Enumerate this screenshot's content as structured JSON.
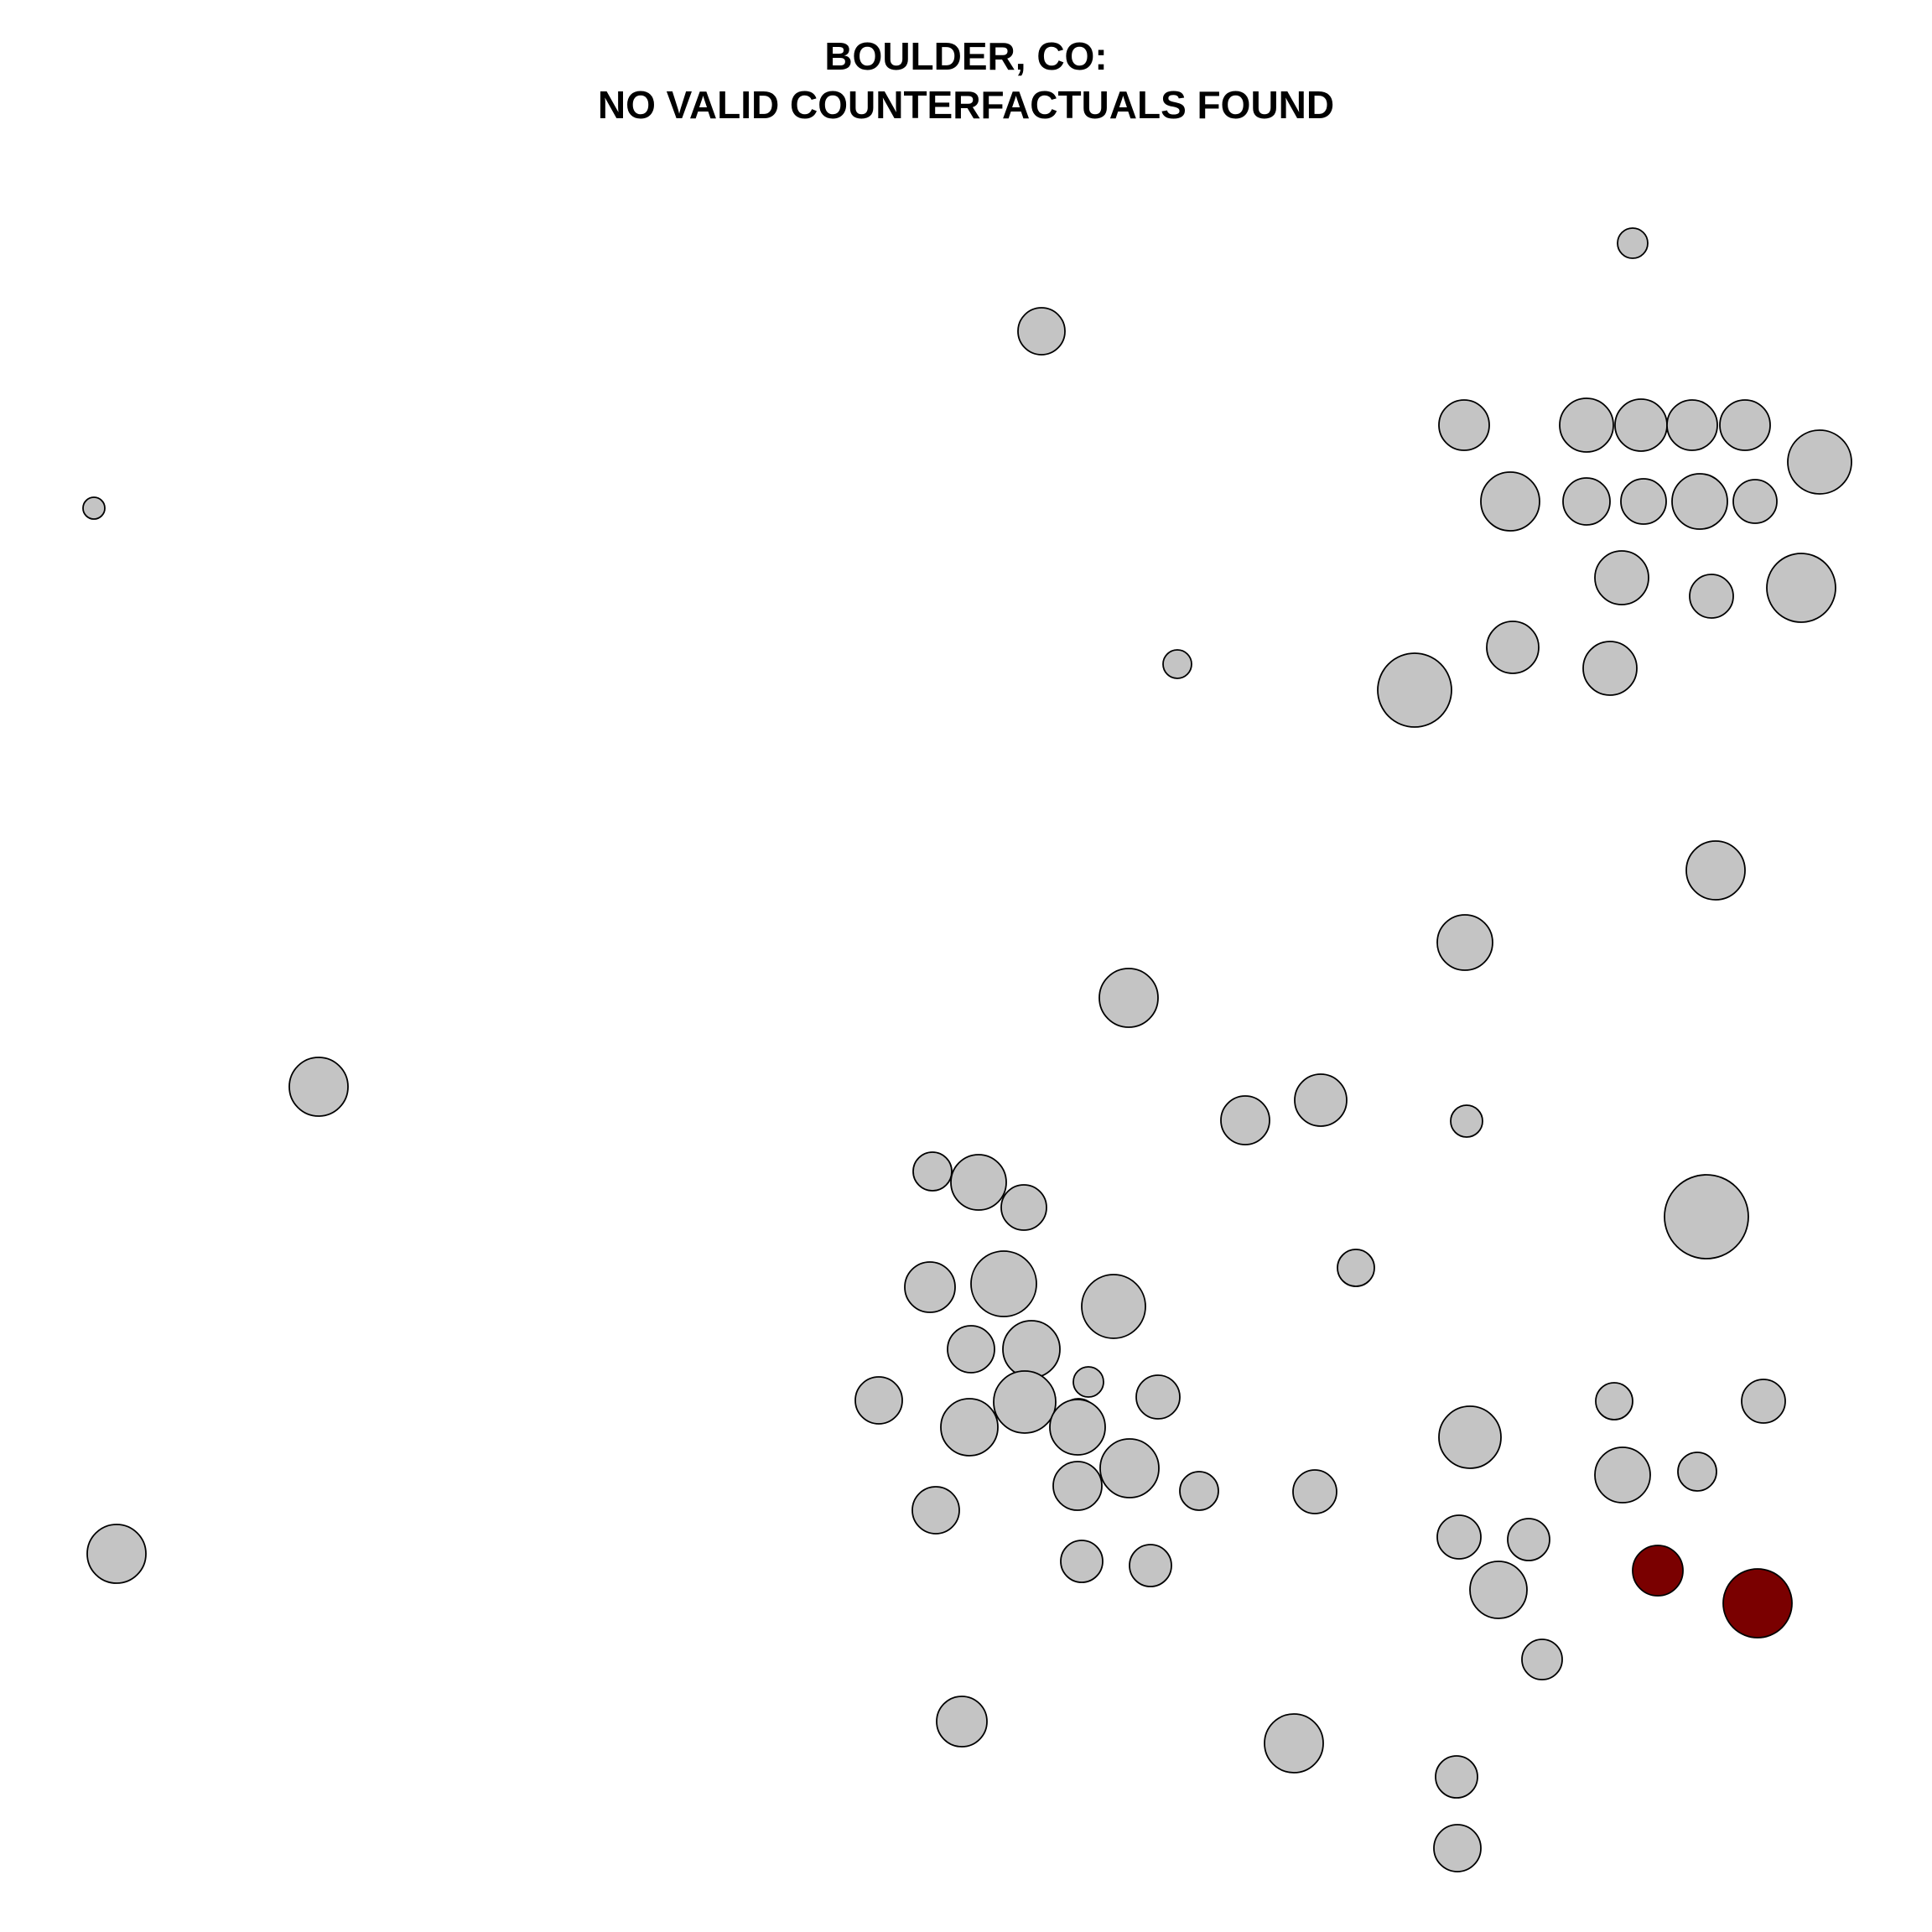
{
  "title": {
    "line1": "BOULDER, CO:",
    "line2": "NO VALID COUNTERFACTUALS FOUND"
  },
  "colors": {
    "background": "#ffffff",
    "unit_fill": "#c4c4c4",
    "highlight_fill": "#7a0000",
    "stroke": "#000000"
  }
}
